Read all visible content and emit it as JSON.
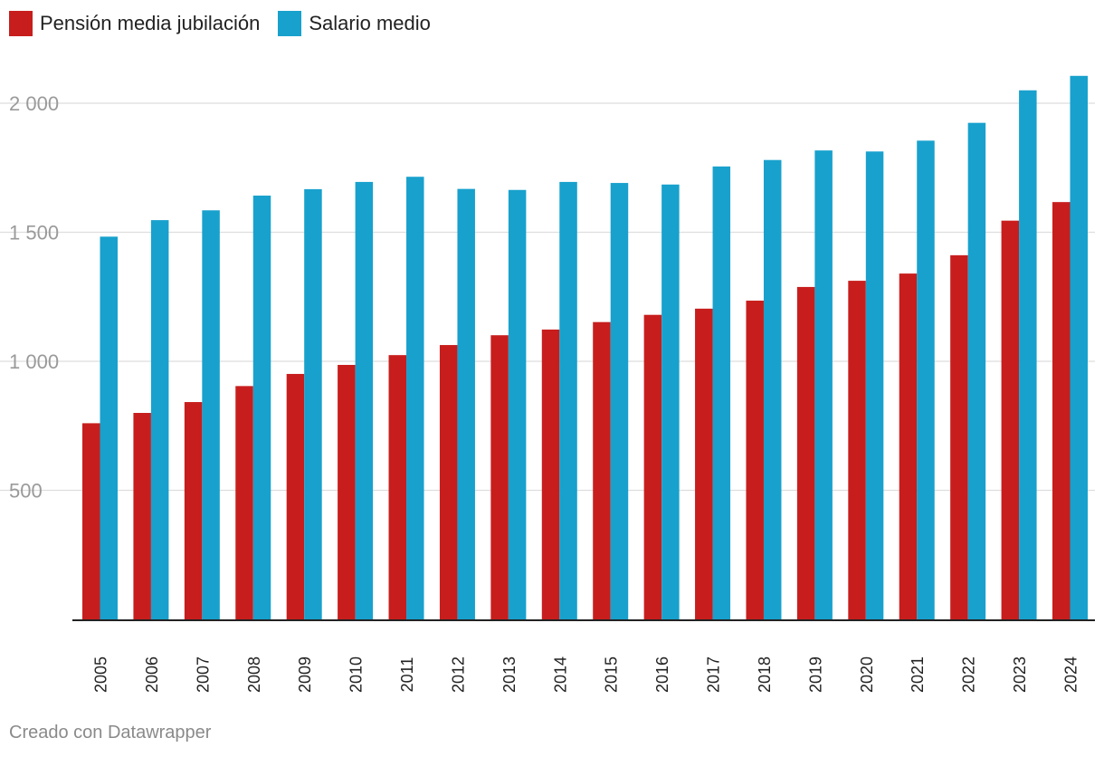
{
  "chart_data": {
    "type": "bar",
    "title": "",
    "xlabel": "",
    "ylabel": "",
    "ylim": [
      0,
      2000
    ],
    "yticks": [
      500,
      1000,
      1500,
      2000
    ],
    "ytick_labels": [
      "500",
      "1 000",
      "1 500",
      "2 000"
    ],
    "categories": [
      "2005",
      "2006",
      "2007",
      "2008",
      "2009",
      "2010",
      "2011",
      "2012",
      "2013",
      "2014",
      "2015",
      "2016",
      "2017",
      "2018",
      "2019",
      "2020",
      "2021",
      "2022",
      "2023",
      "2024"
    ],
    "series": [
      {
        "name": "Pensión media jubilación",
        "color": "#c71e1d",
        "values": [
          760,
          800,
          842,
          904,
          951,
          986,
          1024,
          1063,
          1101,
          1123,
          1152,
          1180,
          1204,
          1235,
          1288,
          1312,
          1340,
          1411,
          1545,
          1617
        ]
      },
      {
        "name": "Salario medio",
        "color": "#18a1cd",
        "values": [
          1483,
          1547,
          1585,
          1642,
          1667,
          1695,
          1715,
          1668,
          1664,
          1695,
          1691,
          1685,
          1755,
          1780,
          1817,
          1813,
          1855,
          1924,
          2050,
          2106
        ]
      }
    ],
    "legend_position": "top-left",
    "grid": true
  },
  "footer": {
    "credit": "Creado con Datawrapper"
  }
}
